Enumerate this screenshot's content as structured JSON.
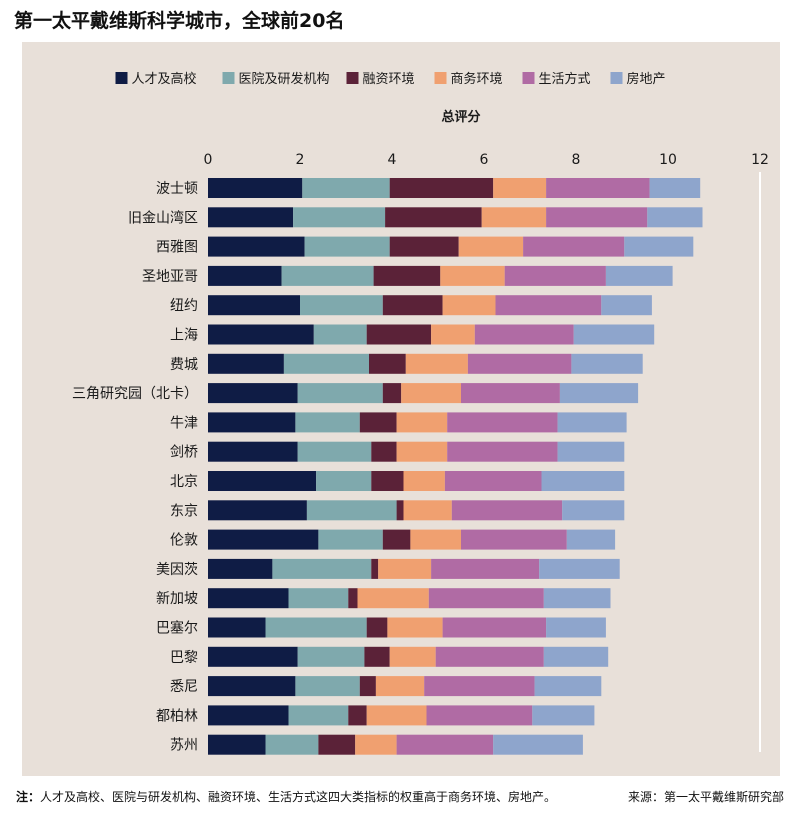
{
  "title": "第一太平戴维斯科学城市，全球前20名",
  "footer": {
    "note_label": "注：",
    "note_text": "人才及高校、医院与研发机构、融资环境、生活方式这四大类指标的权重高于商务环境、房地产。",
    "source": "来源：第一太平戴维斯研究部"
  },
  "chart_data": {
    "type": "bar",
    "orientation": "horizontal",
    "stacked": true,
    "xlabel": "总评分",
    "xlim": [
      0,
      12
    ],
    "xticks": [
      0,
      2,
      4,
      6,
      8,
      10,
      12
    ],
    "legend_position": "top",
    "grid": false,
    "categories": [
      "波士顿",
      "旧金山湾区",
      "西雅图",
      "圣地亚哥",
      "纽约",
      "上海",
      "费城",
      "三角研究园（北卡）",
      "牛津",
      "剑桥",
      "北京",
      "东京",
      "伦敦",
      "美因茨",
      "新加坡",
      "巴塞尔",
      "巴黎",
      "悉尼",
      "都柏林",
      "苏州"
    ],
    "series": [
      {
        "name": "人才及高校",
        "color": "#0f1c45",
        "values": [
          2.05,
          1.85,
          2.1,
          1.6,
          2.0,
          2.3,
          1.65,
          1.95,
          1.9,
          1.95,
          2.35,
          2.15,
          2.4,
          1.4,
          1.75,
          1.25,
          1.95,
          1.9,
          1.75,
          1.25
        ]
      },
      {
        "name": "医院及研发机构",
        "color": "#7fa9ad",
        "values": [
          1.9,
          2.0,
          1.85,
          2.0,
          1.8,
          1.15,
          1.85,
          1.85,
          1.4,
          1.6,
          1.2,
          1.95,
          1.4,
          2.15,
          1.3,
          2.2,
          1.45,
          1.4,
          1.3,
          1.15
        ]
      },
      {
        "name": "融资环境",
        "color": "#5b2238",
        "values": [
          2.25,
          2.1,
          1.5,
          1.45,
          1.3,
          1.4,
          0.8,
          0.4,
          0.8,
          0.55,
          0.7,
          0.15,
          0.6,
          0.15,
          0.2,
          0.45,
          0.55,
          0.35,
          0.4,
          0.8
        ]
      },
      {
        "name": "商务环境",
        "color": "#f0a070",
        "values": [
          1.15,
          1.4,
          1.4,
          1.4,
          1.15,
          0.95,
          1.35,
          1.3,
          1.1,
          1.1,
          0.9,
          1.05,
          1.1,
          1.15,
          1.55,
          1.2,
          1.0,
          1.05,
          1.3,
          0.9
        ]
      },
      {
        "name": "生活方式",
        "color": "#b06ba4",
        "values": [
          2.25,
          2.2,
          2.2,
          2.2,
          2.3,
          2.15,
          2.25,
          2.15,
          2.4,
          2.4,
          2.1,
          2.4,
          2.3,
          2.35,
          2.5,
          2.25,
          2.35,
          2.4,
          2.3,
          2.1
        ]
      },
      {
        "name": "房地产",
        "color": "#8ea5cc",
        "values": [
          1.1,
          1.2,
          1.5,
          1.45,
          1.1,
          1.75,
          1.55,
          1.7,
          1.5,
          1.45,
          1.8,
          1.35,
          1.05,
          1.75,
          1.45,
          1.3,
          1.4,
          1.45,
          1.35,
          1.95
        ]
      }
    ]
  }
}
